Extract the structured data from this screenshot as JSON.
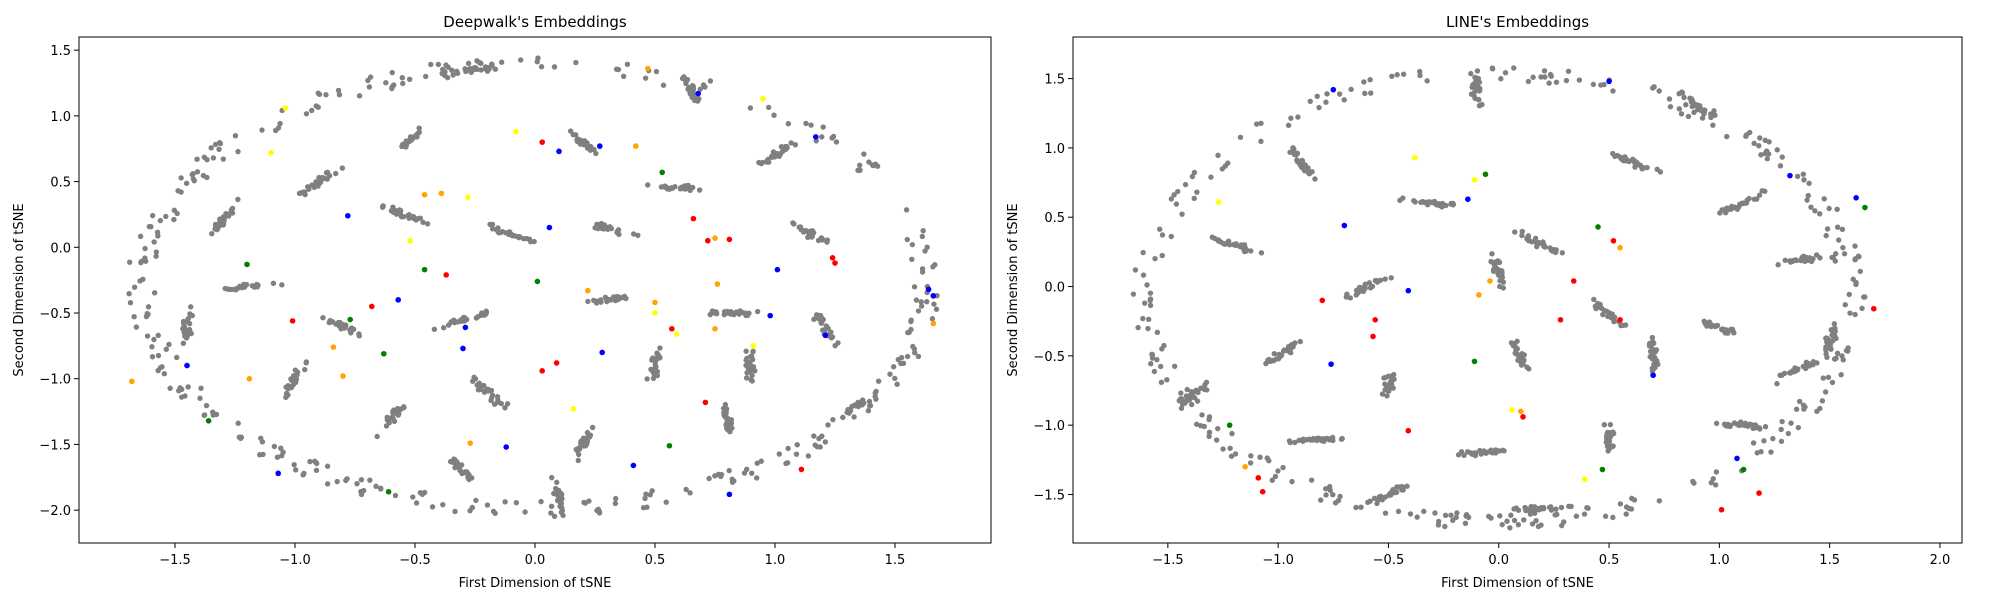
{
  "chart_data": [
    {
      "type": "scatter",
      "title": "Deepwalk's Embeddings",
      "xlabel": "First Dimension of tSNE",
      "ylabel": "Second Dimension of tSNE",
      "xlim": [
        -1.9,
        1.9
      ],
      "ylim": [
        -2.25,
        1.6
      ],
      "xticks": [
        -1.5,
        -1.0,
        -0.5,
        0.0,
        0.5,
        1.0,
        1.5
      ],
      "xtick_labels": [
        "−1.5",
        "−1.0",
        "−0.5",
        "0.0",
        "0.5",
        "1.0",
        "1.5"
      ],
      "yticks": [
        1.5,
        1.0,
        0.5,
        0.0,
        -0.5,
        -1.0,
        -1.5,
        -2.0
      ],
      "ytick_labels": [
        "1.5",
        "1.0",
        "0.5",
        "0.0",
        "−0.5",
        "−1.0",
        "−1.5",
        "−2.0"
      ],
      "grid": false,
      "colors": {
        "base": "#808080",
        "red": "#ff0000",
        "blue": "#0000ff",
        "green": "#008000",
        "yellow": "#ffff00",
        "orange": "#ffa500"
      },
      "series": [
        {
          "color": "red",
          "points": [
            [
              -1.01,
              -0.56
            ],
            [
              0.03,
              0.8
            ],
            [
              0.66,
              0.218
            ],
            [
              0.72,
              0.05
            ],
            [
              0.81,
              0.06
            ],
            [
              1.25,
              -0.12
            ],
            [
              1.24,
              -0.08
            ],
            [
              0.03,
              -0.94
            ],
            [
              0.57,
              -0.62
            ],
            [
              -0.68,
              -0.45
            ],
            [
              1.11,
              -1.69
            ],
            [
              0.09,
              -0.88
            ],
            [
              0.71,
              -1.18
            ],
            [
              -0.37,
              -0.21
            ]
          ]
        },
        {
          "color": "blue",
          "points": [
            [
              0.68,
              1.17
            ],
            [
              0.1,
              0.73
            ],
            [
              0.27,
              0.77
            ],
            [
              1.17,
              0.84
            ],
            [
              0.06,
              0.15
            ],
            [
              -0.57,
              -0.4
            ],
            [
              -0.29,
              -0.61
            ],
            [
              -0.3,
              -0.77
            ],
            [
              0.28,
              -0.8
            ],
            [
              0.98,
              -0.52
            ],
            [
              1.21,
              -0.67
            ],
            [
              -1.45,
              -0.9
            ],
            [
              -0.12,
              -1.52
            ],
            [
              0.41,
              -1.66
            ],
            [
              0.81,
              -1.88
            ],
            [
              -1.07,
              -1.72
            ],
            [
              1.64,
              -0.32
            ],
            [
              1.66,
              -0.37
            ],
            [
              -0.78,
              0.24
            ],
            [
              1.01,
              -0.17
            ]
          ]
        },
        {
          "color": "green",
          "points": [
            [
              -1.2,
              -0.13
            ],
            [
              -0.63,
              -0.81
            ],
            [
              -0.61,
              -1.86
            ],
            [
              0.56,
              -1.51
            ],
            [
              -1.36,
              -1.32
            ],
            [
              0.53,
              0.57
            ],
            [
              0.01,
              -0.26
            ],
            [
              -0.46,
              -0.17
            ],
            [
              -0.77,
              -0.55
            ]
          ]
        },
        {
          "color": "yellow",
          "points": [
            [
              -1.04,
              1.06
            ],
            [
              -0.08,
              0.88
            ],
            [
              0.95,
              1.13
            ],
            [
              0.59,
              -0.66
            ],
            [
              0.91,
              -0.75
            ],
            [
              0.16,
              -1.23
            ],
            [
              -0.28,
              0.38
            ],
            [
              -0.52,
              0.05
            ],
            [
              0.5,
              -0.5
            ],
            [
              -1.1,
              0.72
            ]
          ]
        },
        {
          "color": "orange",
          "points": [
            [
              -0.46,
              0.4
            ],
            [
              -0.39,
              0.41
            ],
            [
              0.42,
              0.77
            ],
            [
              0.5,
              -0.42
            ],
            [
              0.75,
              -0.62
            ],
            [
              1.66,
              -0.58
            ],
            [
              -0.84,
              -0.76
            ],
            [
              -1.68,
              -1.02
            ],
            [
              -1.19,
              -1.0
            ],
            [
              -0.27,
              -1.49
            ],
            [
              0.75,
              0.07
            ],
            [
              0.47,
              1.36
            ],
            [
              0.22,
              -0.33
            ],
            [
              -0.8,
              -0.98
            ],
            [
              0.76,
              -0.28
            ]
          ]
        }
      ]
    },
    {
      "type": "scatter",
      "title": "LINE's Embeddings",
      "xlabel": "First Dimension of tSNE",
      "ylabel": "Second Dimension of tSNE",
      "xlim": [
        -1.93,
        2.1
      ],
      "ylim": [
        -1.85,
        1.8
      ],
      "xticks": [
        -1.5,
        -1.0,
        -0.5,
        0.0,
        0.5,
        1.0,
        1.5,
        2.0
      ],
      "xtick_labels": [
        "−1.5",
        "−1.0",
        "−0.5",
        "0.0",
        "0.5",
        "1.0",
        "1.5",
        "2.0"
      ],
      "yticks": [
        1.5,
        1.0,
        0.5,
        0.0,
        -0.5,
        -1.0,
        -1.5
      ],
      "ytick_labels": [
        "1.5",
        "1.0",
        "0.5",
        "0.0",
        "−0.5",
        "−1.0",
        "−1.5"
      ],
      "grid": false,
      "colors": {
        "base": "#808080",
        "red": "#ff0000",
        "blue": "#0000ff",
        "green": "#008000",
        "yellow": "#ffff00",
        "orange": "#ffa500"
      },
      "series": [
        {
          "color": "red",
          "points": [
            [
              0.52,
              0.33
            ],
            [
              0.34,
              0.04
            ],
            [
              0.55,
              -0.24
            ],
            [
              0.28,
              -0.24
            ],
            [
              1.7,
              -0.16
            ],
            [
              -0.8,
              -0.1
            ],
            [
              -0.57,
              -0.36
            ],
            [
              0.11,
              -0.94
            ],
            [
              -1.09,
              -1.38
            ],
            [
              -1.07,
              -1.48
            ],
            [
              1.01,
              -1.61
            ],
            [
              1.18,
              -1.49
            ],
            [
              -0.41,
              -1.04
            ],
            [
              -0.56,
              -0.24
            ]
          ]
        },
        {
          "color": "blue",
          "points": [
            [
              -0.75,
              1.42
            ],
            [
              0.5,
              1.48
            ],
            [
              -0.7,
              0.44
            ],
            [
              -0.41,
              -0.03
            ],
            [
              -0.76,
              -0.56
            ],
            [
              0.7,
              -0.64
            ],
            [
              1.08,
              -1.24
            ],
            [
              1.32,
              0.8
            ],
            [
              1.62,
              0.64
            ],
            [
              -0.14,
              0.63
            ]
          ]
        },
        {
          "color": "green",
          "points": [
            [
              0.45,
              0.43
            ],
            [
              -0.11,
              -0.54
            ],
            [
              0.47,
              -1.32
            ],
            [
              -1.22,
              -1.0
            ],
            [
              1.11,
              -1.32
            ],
            [
              -0.06,
              0.81
            ],
            [
              1.66,
              0.57
            ]
          ]
        },
        {
          "color": "yellow",
          "points": [
            [
              -0.38,
              0.93
            ],
            [
              -1.27,
              0.61
            ],
            [
              0.39,
              -1.39
            ],
            [
              0.06,
              -0.89
            ],
            [
              -0.11,
              0.77
            ]
          ]
        },
        {
          "color": "orange",
          "points": [
            [
              0.55,
              0.28
            ],
            [
              -0.04,
              0.04
            ],
            [
              -0.09,
              -0.06
            ],
            [
              -1.15,
              -1.3
            ],
            [
              0.1,
              -0.9
            ]
          ]
        }
      ]
    }
  ]
}
